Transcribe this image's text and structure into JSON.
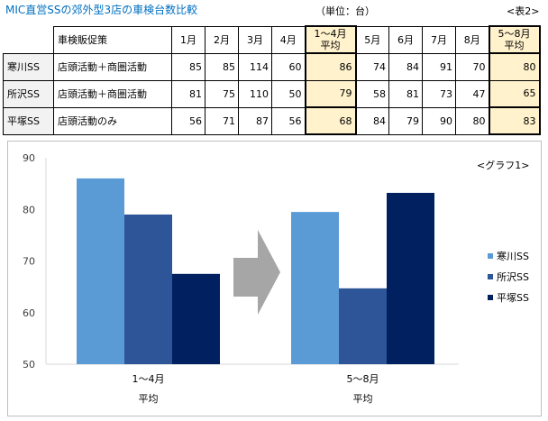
{
  "title": "MIC直営SSの郊外型3店の車検台数比較",
  "unit_label": "（単位：台）",
  "table_ref": "<表2>",
  "table": {
    "headers": {
      "store": "",
      "promotion": "車検販促策",
      "m1": "1月",
      "m2": "2月",
      "m3": "3月",
      "m4": "4月",
      "avg1_line1": "1～4月",
      "avg1_line2": "平均",
      "m5": "5月",
      "m6": "6月",
      "m7": "7月",
      "m8": "8月",
      "avg2_line1": "5～8月",
      "avg2_line2": "平均"
    },
    "rows": [
      {
        "store": "寒川SS",
        "promotion": "店頭活動＋商圏活動",
        "m1": "85",
        "m2": "85",
        "m3": "114",
        "m4": "60",
        "avg1": "86",
        "m5": "74",
        "m6": "84",
        "m7": "91",
        "m8": "70",
        "avg2": "80"
      },
      {
        "store": "所沢SS",
        "promotion": "店頭活動＋商圏活動",
        "m1": "81",
        "m2": "75",
        "m3": "110",
        "m4": "50",
        "avg1": "79",
        "m5": "58",
        "m6": "81",
        "m7": "73",
        "m8": "47",
        "avg2": "65"
      },
      {
        "store": "平塚SS",
        "promotion": "店頭活動のみ",
        "m1": "56",
        "m2": "71",
        "m3": "87",
        "m4": "56",
        "avg1": "68",
        "m5": "84",
        "m6": "79",
        "m7": "90",
        "m8": "80",
        "avg2": "83"
      }
    ]
  },
  "colors": {
    "series1": "#5B9BD5",
    "series2": "#2E5597",
    "series3": "#002060",
    "arrow": "#A6A6A6",
    "highlight": "#FFF2CC",
    "title": "#0070C0"
  },
  "chart_note": "<グラフ1>",
  "chart_data": {
    "type": "bar",
    "categories": [
      {
        "line1": "1～4月",
        "line2": "平均"
      },
      {
        "line1": "5～8月",
        "line2": "平均"
      }
    ],
    "series": [
      {
        "name": "寒川SS",
        "values": [
          86,
          79.5
        ]
      },
      {
        "name": "所沢SS",
        "values": [
          79,
          64.7
        ]
      },
      {
        "name": "平塚SS",
        "values": [
          67.5,
          83.2
        ]
      }
    ],
    "ylim": [
      50,
      90
    ],
    "yticks": [
      "50",
      "60",
      "70",
      "80",
      "90"
    ],
    "grid": false,
    "legend": "right",
    "annotation": "arrow-right-between-groups"
  }
}
